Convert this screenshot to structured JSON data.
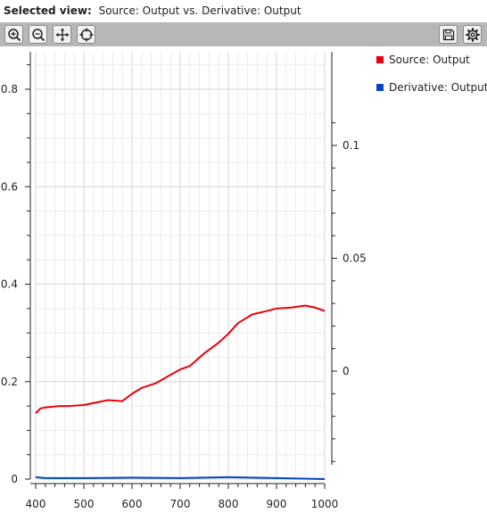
{
  "header": {
    "label": "Selected view:",
    "value": "Source: Output vs. Derivative: Output"
  },
  "toolbar": {
    "left": [
      {
        "name": "zoom-in",
        "icon": "zoom-in-icon"
      },
      {
        "name": "zoom-out",
        "icon": "zoom-out-icon"
      },
      {
        "name": "pan",
        "icon": "move-icon"
      },
      {
        "name": "reset",
        "icon": "crosshair-icon"
      }
    ],
    "right": [
      {
        "name": "save",
        "icon": "save-icon"
      },
      {
        "name": "settings",
        "icon": "gear-icon"
      }
    ]
  },
  "chart_data": {
    "type": "line",
    "grid": true,
    "legend_position": "top-right",
    "x_ticks": [
      400,
      500,
      600,
      700,
      800,
      900,
      1000
    ],
    "xlim": [
      400,
      1000
    ],
    "y_left_ticks": [
      "0",
      "0.2",
      "0.4",
      "0.6",
      "0.8"
    ],
    "ylim_left": [
      0,
      0.8
    ],
    "y_right_ticks": [
      "0",
      "0.05",
      "0.1"
    ],
    "ylim_right": [
      0,
      0.1
    ],
    "series": [
      {
        "name": "Source: Output",
        "color": "#e8000b",
        "axis": "left",
        "x": [
          400,
          410,
          420,
          450,
          470,
          500,
          520,
          550,
          580,
          600,
          620,
          650,
          680,
          700,
          720,
          750,
          780,
          800,
          820,
          850,
          880,
          900,
          930,
          960,
          980,
          1000
        ],
        "y": [
          0.135,
          0.145,
          0.147,
          0.15,
          0.15,
          0.152,
          0.156,
          0.162,
          0.16,
          0.175,
          0.187,
          0.197,
          0.214,
          0.225,
          0.232,
          0.258,
          0.28,
          0.298,
          0.32,
          0.338,
          0.345,
          0.35,
          0.352,
          0.356,
          0.352,
          0.345
        ]
      },
      {
        "name": "Derivative: Output",
        "color": "#0044c8",
        "axis": "left",
        "x": [
          400,
          420,
          500,
          600,
          700,
          800,
          900,
          1000
        ],
        "y": [
          0.004,
          0.002,
          0.002,
          0.003,
          0.002,
          0.004,
          0.002,
          0.0
        ]
      }
    ]
  }
}
